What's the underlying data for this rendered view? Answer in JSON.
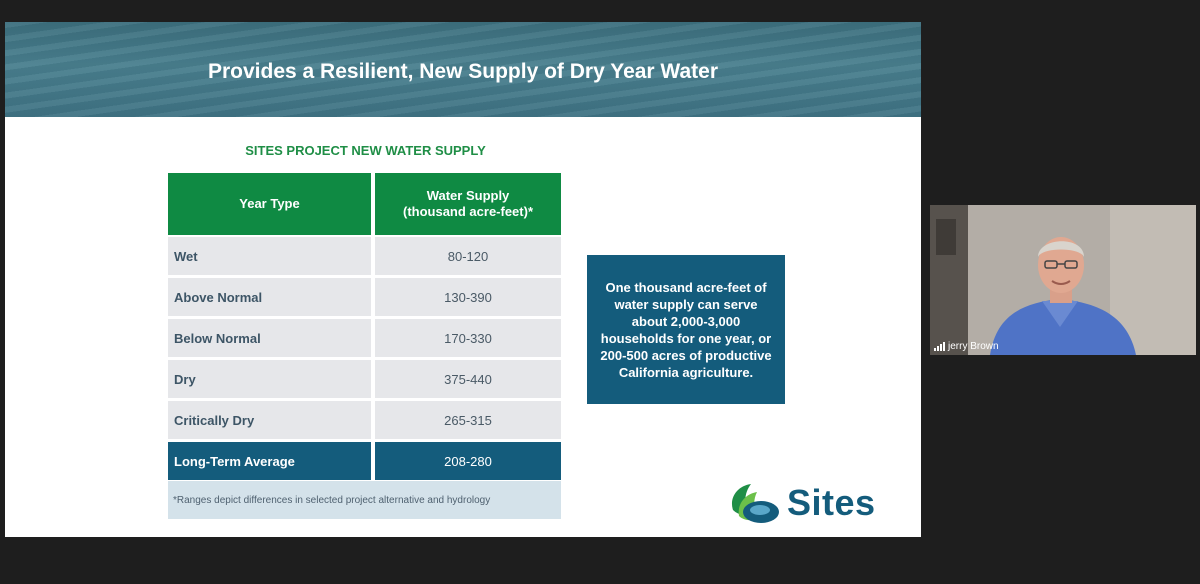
{
  "slide": {
    "title": "Provides a Resilient, New Supply of Dry Year Water",
    "table_title": "SITES PROJECT NEW WATER SUPPLY",
    "table": {
      "headers": [
        "Year Type",
        "Water Supply",
        "(thousand acre-feet)*"
      ],
      "rows": [
        {
          "type": "Wet",
          "supply": "80-120"
        },
        {
          "type": "Above Normal",
          "supply": "130-390"
        },
        {
          "type": "Below Normal",
          "supply": "170-330"
        },
        {
          "type": "Dry",
          "supply": "375-440"
        },
        {
          "type": "Critically Dry",
          "supply": "265-315"
        }
      ],
      "average": {
        "type": "Long-Term Average",
        "supply": "208-280"
      },
      "footnote": "*Ranges depict differences in selected project alternative and hydrology"
    },
    "callout": "One thousand acre-feet of water supply can serve about 2,000-3,000 households for one year, or 200-500 acres of productive California agriculture.",
    "logo_text": "Sites",
    "colors": {
      "green": "#0f8a43",
      "navy": "#145c7c"
    }
  },
  "video": {
    "participant_name": "jerry Brown",
    "icon": "signal-bars-icon"
  }
}
